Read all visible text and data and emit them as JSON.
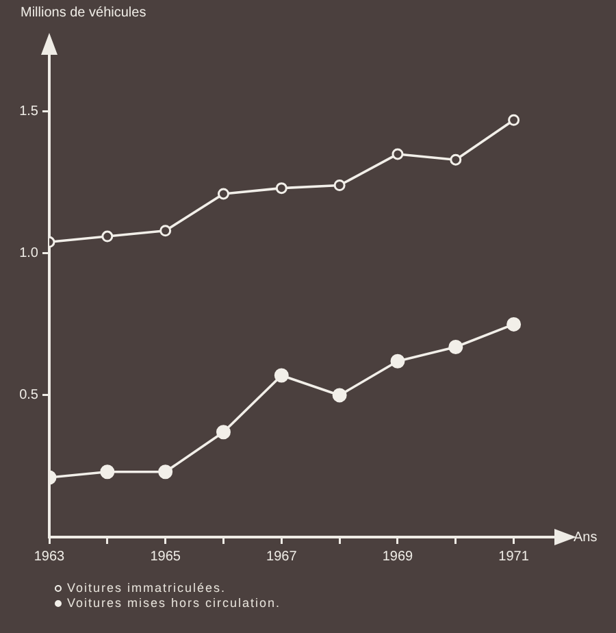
{
  "chart_data": {
    "type": "line",
    "xlabel": "Ans",
    "ylabel": "Millions de véhicules",
    "x": [
      1963,
      1964,
      1965,
      1966,
      1967,
      1968,
      1969,
      1970,
      1971
    ],
    "series": [
      {
        "name": "Voitures immatriculées.",
        "color": "#f2efe9",
        "values": [
          1.04,
          1.06,
          1.08,
          1.21,
          1.23,
          1.24,
          1.35,
          1.33,
          1.47
        ]
      },
      {
        "name": "Voitures mises hors circulation.",
        "color": "#f2efe9",
        "values": [
          0.21,
          0.23,
          0.23,
          0.37,
          0.57,
          0.5,
          0.62,
          0.67,
          0.75
        ]
      }
    ],
    "xlim": [
      1963,
      1971.7
    ],
    "ylim": [
      0,
      1.7
    ],
    "xticks": [
      1963,
      {
        "value": 1964,
        "label": null
      },
      1965,
      {
        "value": 1966,
        "label": null
      },
      1967,
      {
        "value": 1968,
        "label": null
      },
      1969,
      {
        "value": 1970,
        "label": null
      },
      1971
    ],
    "yticks": [
      {
        "value": 0.5,
        "label": "0.5"
      },
      {
        "value": 1,
        "label": "1.0"
      },
      {
        "value": 1.5,
        "label": "1.5"
      }
    ],
    "grid": false,
    "legend": "bottom left",
    "marker": "circle",
    "line_style": "solid"
  }
}
